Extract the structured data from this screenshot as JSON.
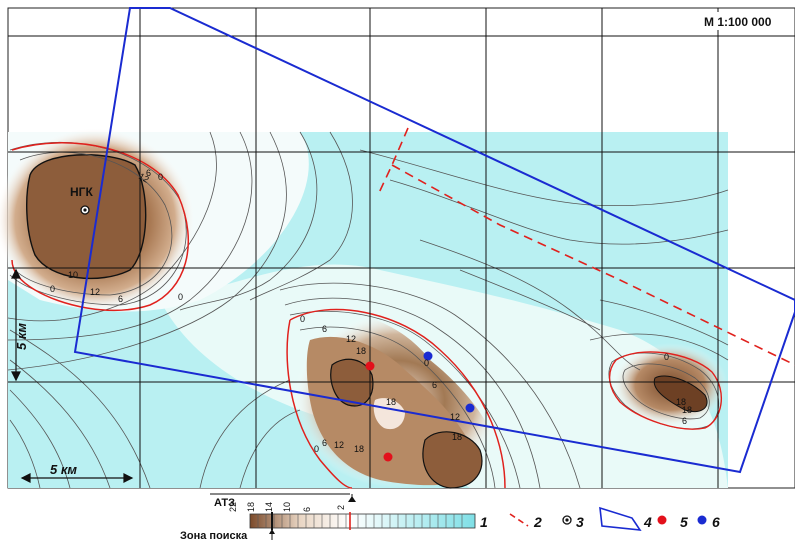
{
  "map": {
    "scale_label": "М 1:100 000",
    "site_label": "НГК",
    "scale_bar_h": "5 км",
    "scale_bar_v": "5 км",
    "contour_labels": {
      "nw": [
        "12",
        "6",
        "0",
        "10",
        "12",
        "6",
        "0",
        "0"
      ],
      "center": [
        "0",
        "6",
        "12",
        "18",
        "0",
        "6",
        "12",
        "18",
        "18",
        "18",
        "6",
        "0",
        "12"
      ],
      "east": [
        "0",
        "18",
        "18",
        "6"
      ]
    },
    "colors": {
      "low": "#a6eef0",
      "high": "#7b4a2a",
      "contour_red": "#e0211d",
      "polygon_blue": "#1a2bd1",
      "point_red": "#e3101b",
      "point_blue": "#1a2bd1"
    }
  },
  "legend": {
    "title": "АТЗ",
    "ticks": [
      "22",
      "18",
      "14",
      "10",
      "6",
      "2"
    ],
    "zone_label": "Зона поиска",
    "item1": "1",
    "item2": "2",
    "item3": "3",
    "item4": "4",
    "item5": "5",
    "item6": "6"
  }
}
